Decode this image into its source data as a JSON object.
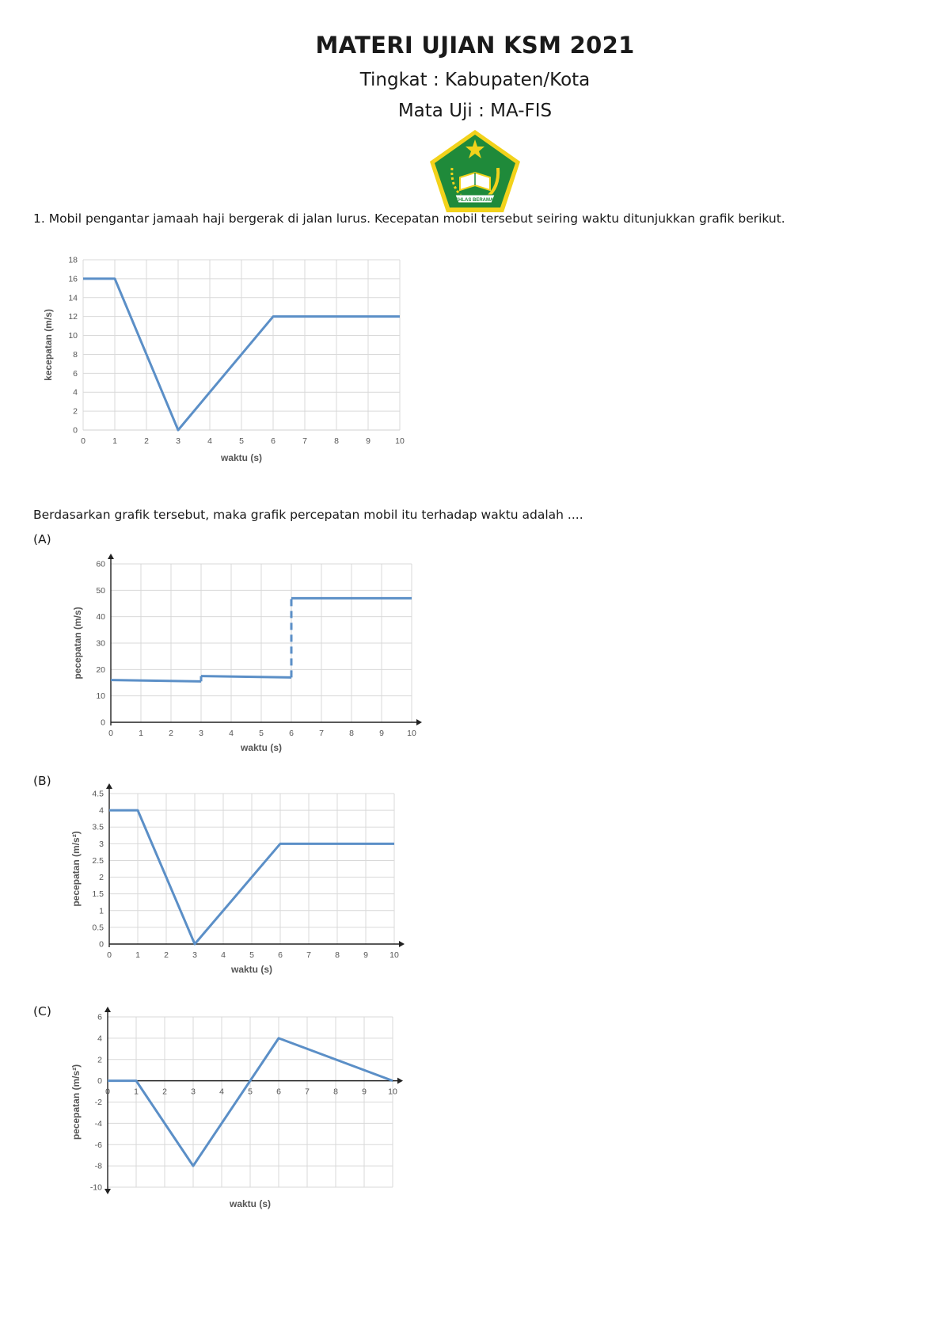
{
  "document": {
    "title": "MATERI UJIAN KSM 2021",
    "level": "Tingkat : Kabupaten/Kota",
    "subject": "Mata Uji : MA-FIS",
    "logo_text": "IKHLAS BERAMAL",
    "question_1": "1. Mobil pengantar jamaah haji bergerak di jalan lurus. Kecepatan mobil tersebut seiring waktu ditunjukkan grafik berikut.",
    "question_1_prompt": "Berdasarkan grafik tersebut, maka grafik percepatan mobil itu terhadap waktu adalah ....",
    "options": [
      "(A)",
      "(B)",
      "(C)"
    ]
  },
  "colors": {
    "line": "#5b8fc7",
    "grid": "#d9d9d9",
    "axis": "#222222",
    "logo_green": "#1f8a3a",
    "logo_yellow": "#f2d21b"
  },
  "chart_data": [
    {
      "id": "velocity",
      "type": "line",
      "xlabel": "waktu (s)",
      "ylabel": "kecepatan (m/s)",
      "xlim": [
        0,
        10
      ],
      "ylim": [
        0,
        18
      ],
      "xticks": [
        0,
        1,
        2,
        3,
        4,
        5,
        6,
        7,
        8,
        9,
        10
      ],
      "yticks": [
        0,
        2,
        4,
        6,
        8,
        10,
        12,
        14,
        16,
        18
      ],
      "grid": true,
      "series": [
        {
          "x": [
            0,
            1,
            3,
            6,
            10
          ],
          "y": [
            16,
            16,
            0,
            12,
            12
          ]
        }
      ]
    },
    {
      "id": "option-a",
      "type": "line",
      "xlabel": "waktu (s)",
      "ylabel": "pecepatan (m/s)",
      "xlim": [
        0,
        10
      ],
      "ylim": [
        0,
        60
      ],
      "xticks": [
        0,
        1,
        2,
        3,
        4,
        5,
        6,
        7,
        8,
        9,
        10
      ],
      "yticks": [
        0,
        10,
        20,
        30,
        40,
        50,
        60
      ],
      "grid": true,
      "segments": [
        {
          "x": [
            0,
            3
          ],
          "y": [
            16,
            15.5
          ]
        },
        {
          "x": [
            3,
            3
          ],
          "y": [
            15.5,
            17.5
          ]
        },
        {
          "x": [
            3,
            6
          ],
          "y": [
            17.5,
            17
          ]
        },
        {
          "x": [
            6,
            6
          ],
          "y": [
            17,
            47
          ],
          "dashed": true
        },
        {
          "x": [
            6,
            10
          ],
          "y": [
            47,
            47
          ]
        }
      ]
    },
    {
      "id": "option-b",
      "type": "line",
      "xlabel": "waktu (s)",
      "ylabel": "pecepatan (m/s²)",
      "xlim": [
        0,
        10
      ],
      "ylim": [
        0,
        4.5
      ],
      "xticks": [
        0,
        1,
        2,
        3,
        4,
        5,
        6,
        7,
        8,
        9,
        10
      ],
      "yticks": [
        0,
        0.5,
        1,
        1.5,
        2,
        2.5,
        3,
        3.5,
        4,
        4.5
      ],
      "grid": true,
      "series": [
        {
          "x": [
            0,
            1,
            3,
            6,
            10
          ],
          "y": [
            4,
            4,
            0,
            3,
            3
          ]
        }
      ]
    },
    {
      "id": "option-c",
      "type": "line",
      "xlabel": "waktu (s)",
      "ylabel": "pecepatan (m/s²)",
      "xlim": [
        0,
        10
      ],
      "ylim": [
        -10,
        6
      ],
      "xticks": [
        0,
        1,
        2,
        3,
        4,
        5,
        6,
        7,
        8,
        9,
        10
      ],
      "yticks": [
        -10,
        -8,
        -6,
        -4,
        -2,
        0,
        2,
        4,
        6
      ],
      "grid": true,
      "series": [
        {
          "x": [
            0,
            1,
            3,
            6,
            10
          ],
          "y": [
            0,
            0,
            -8,
            4,
            0
          ]
        }
      ]
    }
  ]
}
